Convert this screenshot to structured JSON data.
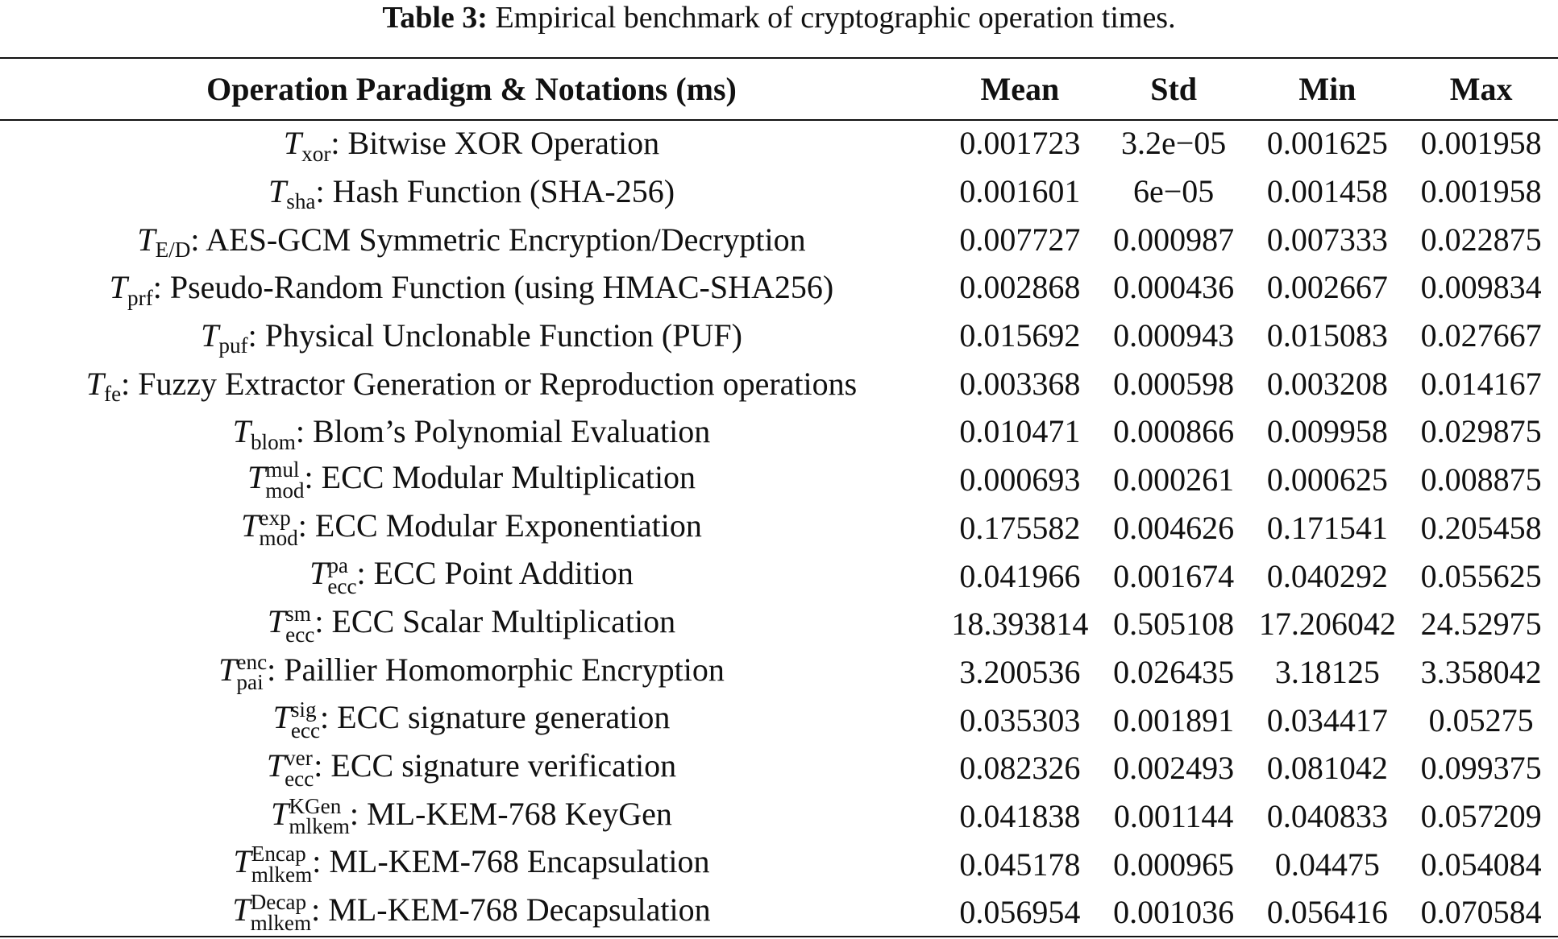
{
  "caption": {
    "label": "Table 3:",
    "text": "Empirical benchmark of cryptographic operation times."
  },
  "table": {
    "header": [
      "Operation Paradigm & Notations (ms)",
      "Mean",
      "Std",
      "Min",
      "Max"
    ],
    "rows": [
      {
        "symbol": "T",
        "sub": "xor",
        "desc": ": Bitwise XOR Operation",
        "values": [
          "0.001723",
          "3.2e−05",
          "0.001625",
          "0.001958"
        ]
      },
      {
        "symbol": "T",
        "sub": "sha",
        "desc": ": Hash Function (SHA-256)",
        "values": [
          "0.001601",
          "6e−05",
          "0.001458",
          "0.001958"
        ]
      },
      {
        "symbol": "T",
        "sub": "E/D",
        "desc": ": AES-GCM Symmetric Encryption/Decryption",
        "values": [
          "0.007727",
          "0.000987",
          "0.007333",
          "0.022875"
        ]
      },
      {
        "symbol": "T",
        "sub": "prf",
        "desc": ": Pseudo-Random Function (using HMAC-SHA256)",
        "values": [
          "0.002868",
          "0.000436",
          "0.002667",
          "0.009834"
        ]
      },
      {
        "symbol": "T",
        "sub": "puf",
        "desc": ": Physical Unclonable Function (PUF)",
        "values": [
          "0.015692",
          "0.000943",
          "0.015083",
          "0.027667"
        ]
      },
      {
        "symbol": "T",
        "sub": "fe",
        "desc": ": Fuzzy Extractor Generation or Reproduction operations",
        "values": [
          "0.003368",
          "0.000598",
          "0.003208",
          "0.014167"
        ]
      },
      {
        "symbol": "T",
        "sub": "blom",
        "desc": ": Blom’s Polynomial Evaluation",
        "values": [
          "0.010471",
          "0.000866",
          "0.009958",
          "0.029875"
        ]
      },
      {
        "symbol": "T",
        "sub": "mod",
        "sup": "mul",
        "desc": ": ECC Modular Multiplication",
        "values": [
          "0.000693",
          "0.000261",
          "0.000625",
          "0.008875"
        ]
      },
      {
        "symbol": "T",
        "sub": "mod",
        "sup": "exp",
        "desc": ": ECC Modular Exponentiation",
        "values": [
          "0.175582",
          "0.004626",
          "0.171541",
          "0.205458"
        ]
      },
      {
        "symbol": "T",
        "sub": "ecc",
        "sup": "pa",
        "desc": ": ECC Point Addition",
        "values": [
          "0.041966",
          "0.001674",
          "0.040292",
          "0.055625"
        ]
      },
      {
        "symbol": "T",
        "sub": "ecc",
        "sup": "sm",
        "desc": ": ECC Scalar Multiplication",
        "values": [
          "18.393814",
          "0.505108",
          "17.206042",
          "24.52975"
        ]
      },
      {
        "symbol": "T",
        "sub": "pai",
        "sup": "enc",
        "desc": ": Paillier Homomorphic Encryption",
        "values": [
          "3.200536",
          "0.026435",
          "3.18125",
          "3.358042"
        ]
      },
      {
        "symbol": "T",
        "sub": "ecc",
        "sup": "sig",
        "desc": ": ECC signature generation",
        "values": [
          "0.035303",
          "0.001891",
          "0.034417",
          "0.05275"
        ]
      },
      {
        "symbol": "T",
        "sub": "ecc",
        "sup": "ver",
        "desc": ": ECC signature verification",
        "values": [
          "0.082326",
          "0.002493",
          "0.081042",
          "0.099375"
        ]
      },
      {
        "symbol": "T",
        "sub": "mlkem",
        "sup": "KGen",
        "desc": ": ML-KEM-768 KeyGen",
        "values": [
          "0.041838",
          "0.001144",
          "0.040833",
          "0.057209"
        ]
      },
      {
        "symbol": "T",
        "sub": "mlkem",
        "sup": "Encap",
        "desc": ": ML-KEM-768 Encapsulation",
        "values": [
          "0.045178",
          "0.000965",
          "0.04475",
          "0.054084"
        ]
      },
      {
        "symbol": "T",
        "sub": "mlkem",
        "sup": "Decap",
        "desc": ": ML-KEM-768 Decapsulation",
        "values": [
          "0.056954",
          "0.001036",
          "0.056416",
          "0.070584"
        ]
      }
    ]
  }
}
